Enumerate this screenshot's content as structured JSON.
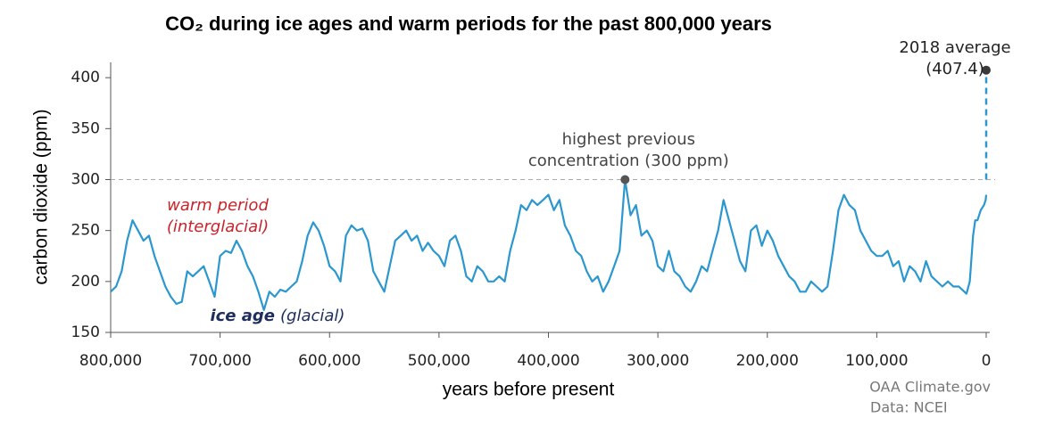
{
  "chart_data": {
    "type": "line",
    "title": "CO₂ during ice ages and warm periods for the past 800,000 years",
    "x_label": "years before present",
    "y_label": "carbon dioxide (ppm)",
    "xlim": [
      800000,
      0
    ],
    "ylim": [
      150,
      415
    ],
    "xticks": [
      {
        "value": 800000,
        "label": "800,000"
      },
      {
        "value": 700000,
        "label": "700,000"
      },
      {
        "value": 600000,
        "label": "600,000"
      },
      {
        "value": 500000,
        "label": "500,000"
      },
      {
        "value": 400000,
        "label": "400,000"
      },
      {
        "value": 300000,
        "label": "300,000"
      },
      {
        "value": 200000,
        "label": "200,000"
      },
      {
        "value": 100000,
        "label": "100,000"
      },
      0
    ],
    "yticks": [
      150,
      200,
      250,
      300,
      350,
      400
    ],
    "grid": false,
    "reference_line": 300,
    "series": [
      {
        "name": null,
        "color": "#2b97cf",
        "x": [
          800000,
          795000,
          790000,
          785000,
          780000,
          775000,
          770000,
          765000,
          760000,
          755000,
          750000,
          745000,
          740000,
          735000,
          730000,
          725000,
          720000,
          715000,
          710000,
          705000,
          700000,
          695000,
          690000,
          685000,
          680000,
          675000,
          670000,
          665000,
          660000,
          655000,
          650000,
          645000,
          640000,
          635000,
          630000,
          625000,
          620000,
          615000,
          610000,
          605000,
          600000,
          595000,
          590000,
          585000,
          580000,
          575000,
          570000,
          565000,
          560000,
          555000,
          550000,
          545000,
          540000,
          535000,
          530000,
          525000,
          520000,
          515000,
          510000,
          505000,
          500000,
          495000,
          490000,
          485000,
          480000,
          475000,
          470000,
          465000,
          460000,
          455000,
          450000,
          445000,
          440000,
          435000,
          430000,
          425000,
          420000,
          415000,
          410000,
          405000,
          400000,
          395000,
          390000,
          385000,
          380000,
          375000,
          370000,
          365000,
          360000,
          355000,
          350000,
          345000,
          340000,
          335000,
          330000,
          325000,
          320000,
          315000,
          310000,
          305000,
          300000,
          295000,
          290000,
          285000,
          280000,
          275000,
          270000,
          265000,
          260000,
          255000,
          250000,
          245000,
          240000,
          235000,
          230000,
          225000,
          220000,
          215000,
          210000,
          205000,
          200000,
          195000,
          190000,
          185000,
          180000,
          175000,
          170000,
          165000,
          160000,
          155000,
          150000,
          145000,
          140000,
          135000,
          130000,
          125000,
          120000,
          115000,
          110000,
          105000,
          100000,
          95000,
          90000,
          85000,
          80000,
          75000,
          70000,
          65000,
          60000,
          55000,
          50000,
          45000,
          40000,
          35000,
          30000,
          25000,
          20000,
          18000,
          15000,
          12000,
          10000,
          8000,
          5000,
          2000,
          500,
          0
        ],
        "values": [
          190,
          195,
          210,
          240,
          260,
          250,
          240,
          245,
          225,
          210,
          195,
          185,
          178,
          180,
          210,
          205,
          210,
          215,
          200,
          185,
          225,
          230,
          228,
          240,
          230,
          215,
          205,
          190,
          172,
          190,
          185,
          192,
          190,
          195,
          200,
          220,
          245,
          258,
          250,
          235,
          215,
          210,
          200,
          245,
          255,
          250,
          252,
          240,
          210,
          200,
          190,
          215,
          240,
          245,
          250,
          240,
          245,
          230,
          238,
          230,
          225,
          215,
          240,
          245,
          230,
          205,
          200,
          215,
          210,
          200,
          200,
          205,
          200,
          230,
          250,
          275,
          270,
          280,
          275,
          280,
          285,
          270,
          280,
          255,
          245,
          230,
          225,
          210,
          200,
          205,
          190,
          200,
          215,
          230,
          300,
          265,
          275,
          245,
          250,
          240,
          215,
          210,
          230,
          210,
          205,
          195,
          190,
          200,
          215,
          210,
          230,
          250,
          280,
          260,
          240,
          220,
          210,
          250,
          255,
          235,
          250,
          240,
          225,
          215,
          205,
          200,
          190,
          190,
          200,
          195,
          190,
          195,
          230,
          270,
          285,
          275,
          270,
          250,
          240,
          230,
          225,
          225,
          230,
          215,
          220,
          200,
          215,
          210,
          200,
          220,
          205,
          200,
          195,
          200,
          195,
          195,
          190,
          188,
          200,
          245,
          260,
          260,
          270,
          275,
          280,
          285
        ]
      }
    ],
    "highlights": [
      {
        "lines": [
          "2018 average"
        ],
        "x": 0,
        "value": 407.4,
        "value_label": "(407.4)"
      },
      {
        "lines": [
          "highest previous",
          "concentration (300 ppm)"
        ],
        "x": 330000,
        "value": 300
      }
    ],
    "annotations": [
      {
        "text": "warm period",
        "color": "#c8242b"
      },
      {
        "text": "(interglacial)",
        "color": "#c8242b"
      },
      {
        "text": "ice age",
        "color": "#1d2d5c"
      },
      {
        "text": "(glacial)",
        "color": "#1d2d5c"
      }
    ],
    "credits": [
      "OAA Climate.gov",
      "Data: NCEI"
    ]
  }
}
